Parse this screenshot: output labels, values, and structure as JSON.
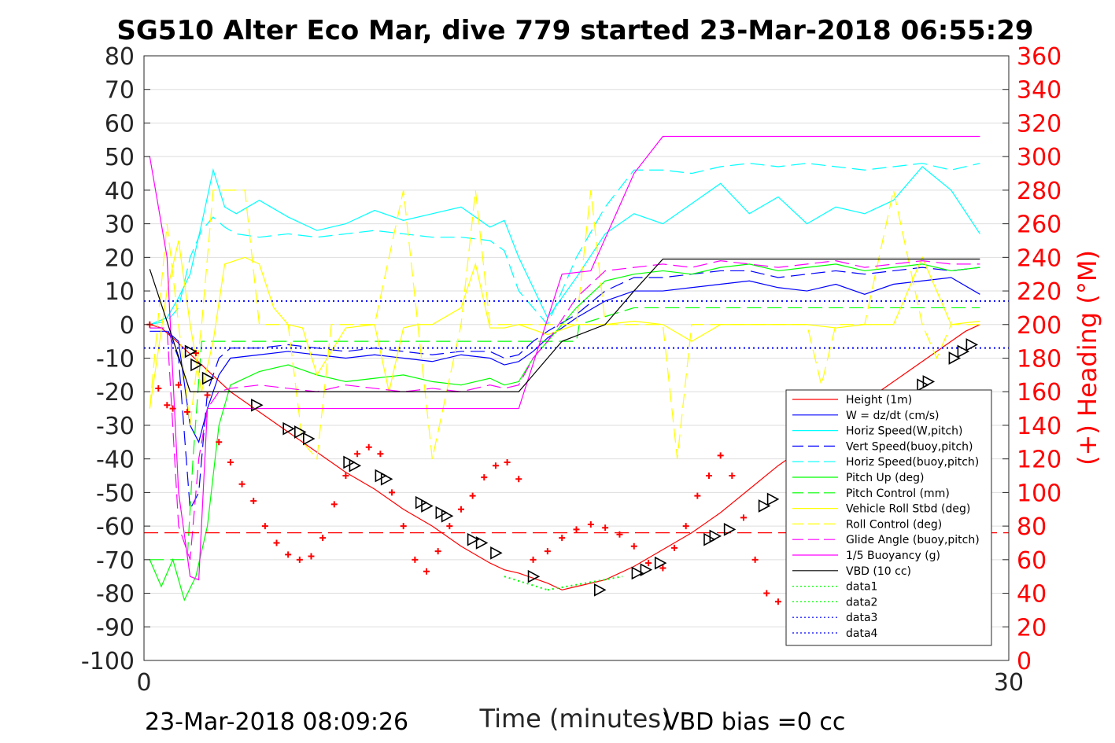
{
  "chart_data": {
    "type": "line",
    "title": "SG510 Alter Eco Mar, dive 779 started 23-Mar-2018 06:55:29",
    "xlabel": "Time (minutes)",
    "ylabel_right": "(+) Heading (°M)",
    "footer_left": "23-Mar-2018 08:09:26",
    "footer_right": "VBD bias =0 cc",
    "xlim": [
      0,
      30
    ],
    "ylim_left": [
      -100,
      80
    ],
    "ylim_right": [
      0,
      360
    ],
    "x_ticks": [
      "0",
      "30"
    ],
    "y_ticks_left": [
      "80",
      "70",
      "60",
      "50",
      "40",
      "30",
      "20",
      "10",
      "0",
      "-10",
      "-20",
      "-30",
      "-40",
      "-50",
      "-60",
      "-70",
      "-80",
      "-90",
      "-100"
    ],
    "y_ticks_right": [
      "360",
      "340",
      "320",
      "300",
      "280",
      "260",
      "240",
      "220",
      "200",
      "180",
      "160",
      "140",
      "120",
      "100",
      "80",
      "60",
      "40",
      "20",
      "0"
    ],
    "grid": true,
    "legend_position": "bottom-right",
    "colors": {
      "red": "#ff0000",
      "blue": "#0000ff",
      "cyan": "#00ffff",
      "green": "#00ff00",
      "yellow": "#ffff00",
      "magenta": "#ff00ff",
      "black": "#000000"
    },
    "series": [
      {
        "name": "Height (1m)",
        "color": "#ff0000",
        "style": "solid",
        "x": [
          0.2,
          0.6,
          1.0,
          1.5,
          2.0,
          2.5,
          3.0,
          4.0,
          5.0,
          6.0,
          7.0,
          8.0,
          9.0,
          10.0,
          11.0,
          12.0,
          12.5,
          13.0,
          14.0,
          14.5,
          15.0,
          16.0,
          17.0,
          18.0,
          19.0,
          20.0,
          21.0,
          22.0,
          23.0,
          24.0,
          25.0,
          26.0,
          27.0,
          28.0,
          28.5,
          29.0
        ],
        "y": [
          0,
          -1,
          -4,
          -8,
          -12,
          -16,
          -20,
          -26,
          -32,
          -38,
          -44,
          -49,
          -55,
          -60,
          -66,
          -71,
          -73,
          -74,
          -77,
          -79,
          -78,
          -76,
          -72,
          -67,
          -62,
          -56,
          -49,
          -42,
          -36,
          -29,
          -23,
          -17,
          -11,
          -5,
          -2,
          0
        ]
      },
      {
        "name": "W = dz/dt (cm/s)",
        "color": "#0000ff",
        "style": "solid",
        "x": [
          0.2,
          0.8,
          1.2,
          1.6,
          1.9,
          2.2,
          2.6,
          3.0,
          4.0,
          5.0,
          6.0,
          7.0,
          8.0,
          9.0,
          10.0,
          11.0,
          12.0,
          12.5,
          13.0,
          13.5,
          14.0,
          15.0,
          16.0,
          17.0,
          18.0,
          19.0,
          20.0,
          21.0,
          22.0,
          23.0,
          24.0,
          25.0,
          26.0,
          27.0,
          28.0,
          29.0
        ],
        "y": [
          -2,
          -2,
          -5,
          -30,
          -35,
          -25,
          -15,
          -10,
          -9,
          -8,
          -9,
          -10,
          -9,
          -10,
          -11,
          -9,
          -10,
          -12,
          -11,
          -8,
          -4,
          2,
          7,
          10,
          10,
          11,
          12,
          13,
          11,
          10,
          12,
          9,
          12,
          13,
          14,
          9
        ]
      },
      {
        "name": "Horiz Speed(W,pitch)",
        "color": "#00ffff",
        "style": "solid",
        "x": [
          0.2,
          0.8,
          1.2,
          1.6,
          2.0,
          2.4,
          2.8,
          3.2,
          4.0,
          5.0,
          6.0,
          7.0,
          8.0,
          9.0,
          10.0,
          11.0,
          12.0,
          12.5,
          13.0,
          14.0,
          15.0,
          16.0,
          17.0,
          18.0,
          19.0,
          20.0,
          21.0,
          22.0,
          23.0,
          24.0,
          25.0,
          26.0,
          27.0,
          28.0,
          29.0
        ],
        "y": [
          0,
          2,
          8,
          15,
          30,
          46,
          35,
          33,
          37,
          32,
          28,
          30,
          34,
          31,
          33,
          35,
          29,
          31,
          20,
          2,
          14,
          27,
          33,
          30,
          36,
          42,
          33,
          38,
          30,
          35,
          33,
          37,
          47,
          40,
          27
        ]
      },
      {
        "name": "Vert Speed(buoy,pitch)",
        "color": "#0000ff",
        "style": "dashed",
        "x": [
          0.2,
          0.8,
          1.2,
          1.6,
          1.9,
          2.2,
          2.6,
          3.0,
          4.0,
          5.0,
          6.0,
          7.0,
          8.0,
          9.0,
          10.0,
          11.0,
          12.0,
          12.5,
          13.0,
          13.5,
          14.0,
          15.0,
          16.0,
          17.0,
          18.0,
          19.0,
          20.0,
          21.0,
          22.0,
          23.0,
          24.0,
          25.0,
          26.0,
          27.0,
          28.0,
          29.0
        ],
        "y": [
          -1,
          -1,
          -10,
          -55,
          -50,
          -20,
          -10,
          -7,
          -7,
          -6,
          -7,
          -8,
          -7,
          -8,
          -9,
          -8,
          -8,
          -10,
          -9,
          -5,
          -2,
          3,
          10,
          14,
          14,
          15,
          16,
          16,
          14,
          15,
          16,
          15,
          16,
          17,
          16,
          17
        ]
      },
      {
        "name": "Horiz Speed(buoy,pitch)",
        "color": "#00ffff",
        "style": "dashed",
        "x": [
          0.2,
          0.8,
          1.2,
          1.6,
          2.0,
          2.4,
          2.8,
          3.2,
          4.0,
          5.0,
          6.0,
          7.0,
          8.0,
          9.0,
          10.0,
          11.0,
          12.0,
          12.5,
          13.0,
          14.0,
          15.0,
          16.0,
          17.0,
          18.0,
          19.0,
          20.0,
          21.0,
          22.0,
          23.0,
          24.0,
          25.0,
          26.0,
          27.0,
          28.0,
          29.0
        ],
        "y": [
          0,
          1,
          5,
          20,
          28,
          32,
          29,
          27,
          26,
          27,
          26,
          27,
          28,
          27,
          26,
          26,
          25,
          22,
          10,
          0,
          20,
          35,
          46,
          46,
          45,
          47,
          48,
          47,
          48,
          47,
          46,
          47,
          48,
          46,
          48
        ]
      },
      {
        "name": "Pitch Up (deg)",
        "color": "#00ff00",
        "style": "solid",
        "x": [
          0.2,
          0.6,
          1.0,
          1.4,
          1.8,
          2.2,
          2.6,
          3.0,
          4.0,
          5.0,
          6.0,
          7.0,
          8.0,
          9.0,
          10.0,
          11.0,
          12.0,
          12.5,
          13.0,
          13.5,
          14.0,
          15.0,
          16.0,
          17.0,
          18.0,
          19.0,
          20.0,
          21.0,
          22.0,
          23.0,
          24.0,
          25.0,
          26.0,
          27.0,
          28.0,
          29.0
        ],
        "y": [
          -70,
          -78,
          -70,
          -82,
          -75,
          -60,
          -30,
          -18,
          -14,
          -12,
          -15,
          -17,
          -16,
          -15,
          -17,
          -18,
          -16,
          -18,
          -17,
          -10,
          -5,
          5,
          13,
          15,
          16,
          15,
          17,
          18,
          16,
          17,
          18,
          16,
          17,
          18,
          16,
          17
        ]
      },
      {
        "name": "Pitch Control (mm)",
        "color": "#00ff00",
        "style": "dashed",
        "x": [
          0.2,
          1.5,
          1.7,
          2.0,
          2.5,
          5.0,
          10.0,
          12.5,
          13.0,
          15.0,
          15.1,
          17.0,
          20.0,
          25.0,
          29.0
        ],
        "y": [
          -70,
          -70,
          -40,
          -5,
          -5,
          -5,
          -5,
          -5,
          -5,
          -5,
          0,
          5,
          5,
          5,
          5
        ]
      },
      {
        "name": "Vehicle Roll Stbd (deg)",
        "color": "#ffff00",
        "style": "solid",
        "x": [
          0.2,
          0.8,
          1.2,
          1.6,
          2.0,
          2.4,
          2.8,
          3.5,
          4.0,
          4.5,
          5.0,
          5.5,
          6.0,
          7.0,
          8.0,
          8.5,
          9.0,
          9.5,
          10.0,
          11.0,
          11.5,
          12.0,
          12.5,
          13.0,
          14.0,
          15.0,
          16.0,
          17.0,
          18.0,
          19.0,
          20.0,
          21.0,
          22.0,
          23.0,
          24.0,
          25.0,
          26.0,
          27.0,
          28.0,
          29.0
        ],
        "y": [
          -25,
          10,
          25,
          0,
          -20,
          -5,
          18,
          20,
          18,
          5,
          0,
          -1,
          -15,
          -1,
          0,
          -20,
          -1,
          0,
          0,
          5,
          18,
          -1,
          -1,
          0,
          -3,
          0,
          0,
          1,
          0,
          -5,
          0,
          0,
          0,
          0,
          -1,
          0,
          0,
          20,
          0,
          1
        ]
      },
      {
        "name": "Roll Control (deg)",
        "color": "#ffff00",
        "style": "dashed",
        "x": [
          0.2,
          0.8,
          1.2,
          1.6,
          2.0,
          2.4,
          2.8,
          3.5,
          4.0,
          4.5,
          5.0,
          5.5,
          6.0,
          6.5,
          7.0,
          8.0,
          9.0,
          9.5,
          10.0,
          11.0,
          11.5,
          12.0,
          12.5,
          13.0,
          14.0,
          15.0,
          15.5,
          16.0,
          17.0,
          18.0,
          18.5,
          19.0,
          20.0,
          21.0,
          22.0,
          23.0,
          23.5,
          24.0,
          25.0,
          26.0,
          27.0,
          27.5,
          28.0,
          29.0
        ],
        "y": [
          -25,
          30,
          0,
          -30,
          0,
          40,
          40,
          40,
          0,
          0,
          0,
          -35,
          -40,
          0,
          0,
          0,
          40,
          0,
          -40,
          0,
          40,
          0,
          0,
          0,
          0,
          0,
          40,
          0,
          0,
          0,
          -40,
          0,
          0,
          0,
          0,
          0,
          -18,
          0,
          0,
          40,
          0,
          -10,
          0,
          0
        ]
      },
      {
        "name": "Glide Angle (buoy,pitch)",
        "color": "#ff00ff",
        "style": "dashed",
        "x": [
          0.2,
          0.8,
          1.2,
          1.6,
          1.9,
          2.2,
          2.6,
          3.0,
          4.0,
          5.0,
          6.0,
          7.0,
          8.0,
          9.0,
          10.0,
          11.0,
          12.0,
          12.5,
          13.0,
          13.5,
          14.0,
          15.0,
          16.0,
          17.0,
          18.0,
          19.0,
          20.0,
          21.0,
          22.0,
          23.0,
          24.0,
          25.0,
          26.0,
          27.0,
          28.0,
          29.0
        ],
        "y": [
          -1,
          -1,
          -60,
          -70,
          -40,
          -25,
          -20,
          -19,
          -18,
          -19,
          -20,
          -18,
          -19,
          -20,
          -19,
          -20,
          -18,
          -19,
          -18,
          -10,
          -5,
          8,
          16,
          17,
          18,
          17,
          19,
          18,
          17,
          18,
          19,
          17,
          18,
          19,
          18,
          18
        ]
      },
      {
        "name": "1/5 Buoyancy (g)",
        "color": "#ff00ff",
        "style": "solid",
        "x": [
          0.2,
          0.8,
          1.2,
          1.6,
          1.9,
          2.2,
          3.0,
          13.0,
          14.5,
          15.5,
          17.0,
          18.0,
          18.3,
          29.0
        ],
        "y": [
          50,
          20,
          -50,
          -75,
          -76,
          -25,
          -25,
          -25,
          15,
          16,
          45,
          56,
          56,
          56
        ]
      },
      {
        "name": "VBD (10 cc)",
        "color": "#000000",
        "style": "solid",
        "x": [
          0.2,
          1.6,
          13.0,
          13.5,
          14.0,
          14.5,
          16.0,
          17.0,
          18.0,
          29.0
        ],
        "y": [
          16.5,
          -20,
          -20,
          -15,
          -10,
          -5,
          0,
          10,
          19.5,
          19.5
        ]
      },
      {
        "name": "data1",
        "color": "#00ff00",
        "style": "dotted",
        "x": [
          14.0,
          16.6
        ],
        "y": [
          -79,
          -75
        ]
      },
      {
        "name": "data2",
        "color": "#00ff00",
        "style": "dotted",
        "x": [
          12.5,
          14.0
        ],
        "y": [
          -75,
          -79
        ]
      },
      {
        "name": "data3",
        "color": "#0000ff",
        "style": "dotted",
        "x": [
          0,
          30
        ],
        "y": [
          7,
          7
        ]
      },
      {
        "name": "data4",
        "color": "#0000ff",
        "style": "dotted",
        "x": [
          0,
          30
        ],
        "y": [
          -7,
          -7
        ]
      },
      {
        "name": "",
        "color": "#ff0000",
        "style": "dashed",
        "x": [
          0,
          30
        ],
        "y": [
          -62,
          -62
        ]
      }
    ],
    "heading_points": {
      "color": "#ff0000",
      "x": [
        0.2,
        0.5,
        0.8,
        1.0,
        1.2,
        1.5,
        1.8,
        2.2,
        2.6,
        3.0,
        3.4,
        3.8,
        4.2,
        4.6,
        5.0,
        5.4,
        5.8,
        6.2,
        6.6,
        7.0,
        7.4,
        7.8,
        8.2,
        8.6,
        9.0,
        9.4,
        9.8,
        10.2,
        10.6,
        11.0,
        11.4,
        11.8,
        12.2,
        12.6,
        13.0,
        13.5,
        14.0,
        14.5,
        15.0,
        15.5,
        16.0,
        16.5,
        17.0,
        17.5,
        18.0,
        18.4,
        18.8,
        19.2,
        19.6,
        20.0,
        20.4,
        20.8,
        21.2,
        21.6,
        22.0,
        22.4,
        22.8,
        23.2,
        23.6,
        24.0,
        24.4,
        24.8,
        25.2,
        25.6,
        26.0
      ],
      "y": [
        200,
        162,
        152,
        150,
        164,
        148,
        183,
        158,
        130,
        118,
        105,
        95,
        80,
        70,
        63,
        60,
        62,
        73,
        93,
        110,
        123,
        127,
        123,
        100,
        80,
        60,
        53,
        65,
        80,
        90,
        98,
        109,
        116,
        118,
        108,
        60,
        65,
        73,
        78,
        81,
        79,
        75,
        68,
        58,
        55,
        67,
        80,
        98,
        110,
        122,
        110,
        85,
        60,
        40,
        35,
        34,
        46,
        69,
        88,
        101,
        103,
        95,
        78,
        58,
        45
      ]
    },
    "triangle_markers": {
      "x": [
        1.6,
        1.8,
        2.2,
        3.9,
        5.0,
        5.4,
        5.7,
        7.1,
        7.3,
        8.2,
        8.4,
        9.6,
        9.8,
        10.3,
        10.5,
        11.4,
        11.7,
        12.2,
        13.5,
        15.8,
        17.1,
        17.4,
        17.9,
        19.6,
        19.8,
        20.3,
        21.5,
        21.8,
        23.0,
        24.2,
        24.5,
        24.8,
        26.0,
        26.3,
        27.0,
        27.2,
        28.1,
        28.4,
        28.7
      ],
      "y": [
        -8,
        -12,
        -16,
        -24,
        -31,
        -32,
        -34,
        -41,
        -42,
        -45,
        -46,
        -53,
        -54,
        -56,
        -57,
        -64,
        -65,
        -68,
        -75,
        -79,
        -74,
        -73,
        -71,
        -64,
        -63,
        -61,
        -54,
        -52,
        -43,
        -36,
        -35,
        -33,
        -27,
        -26,
        -18,
        -17,
        -10,
        -8,
        -6
      ]
    }
  }
}
